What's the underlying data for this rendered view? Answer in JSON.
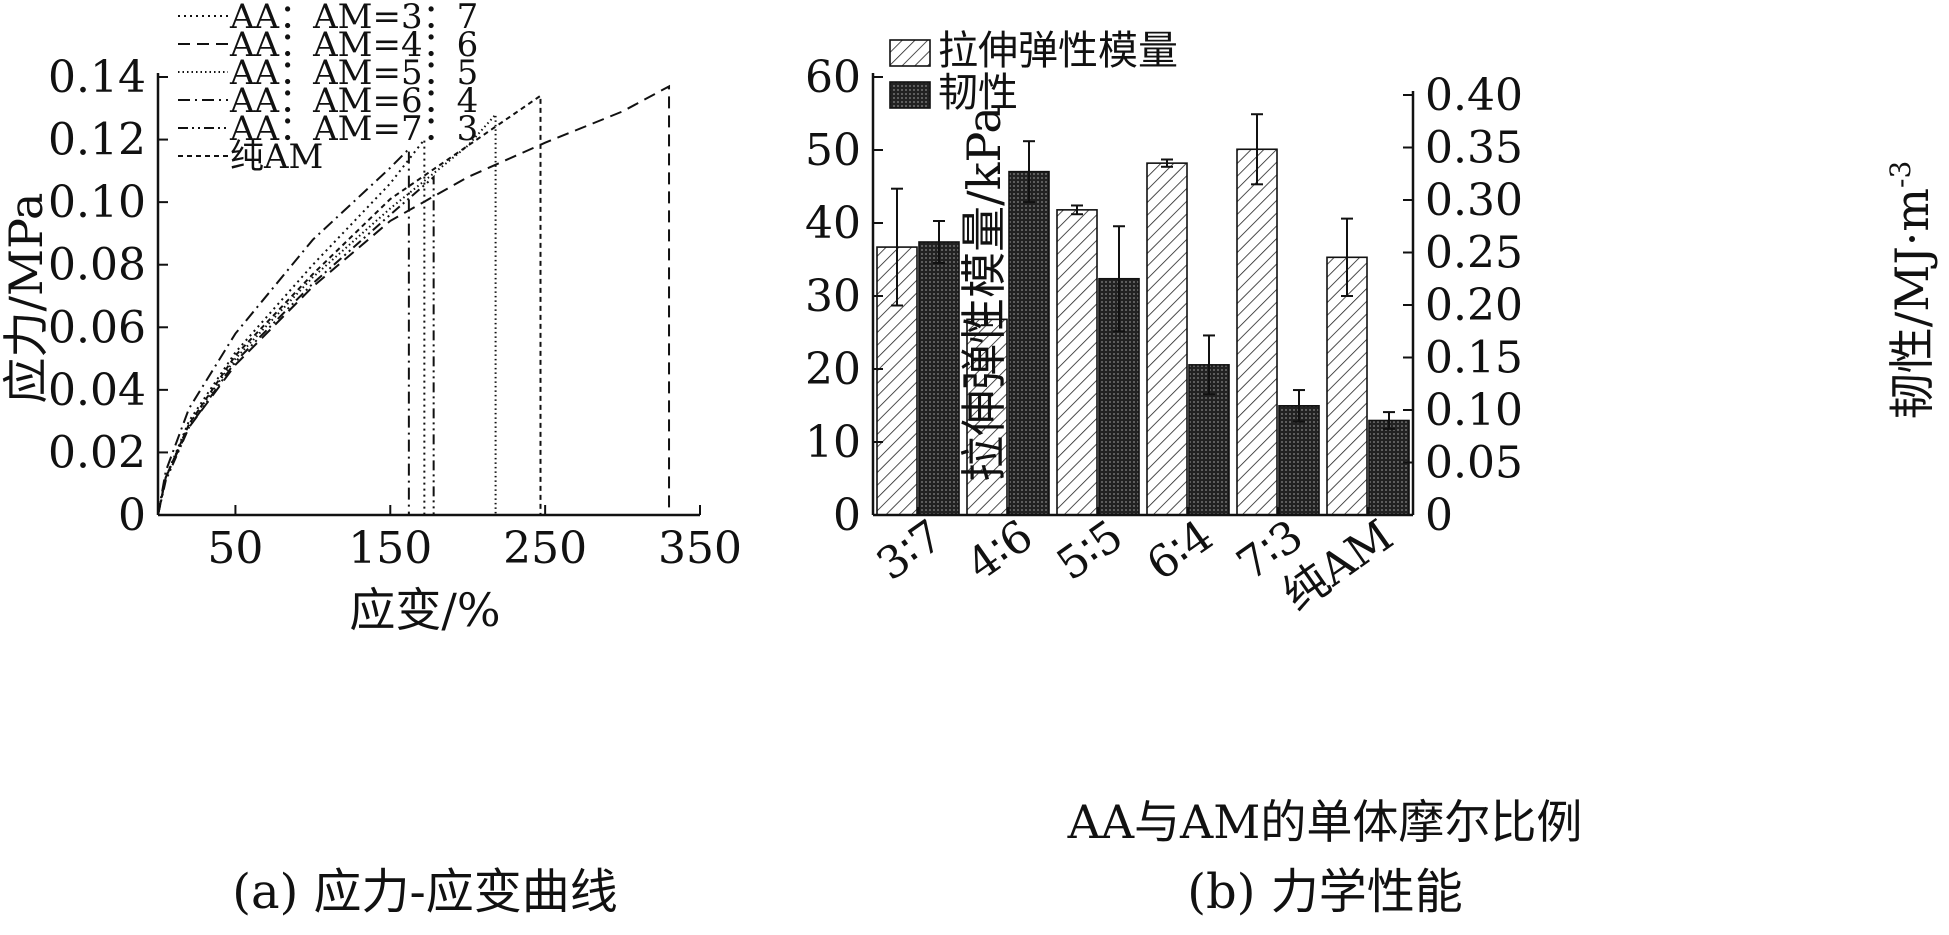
{
  "chart_data": [
    {
      "type": "line",
      "caption": "(a) 应力-应变曲线",
      "xlabel": "应变/%",
      "ylabel": "应力/MPa",
      "xlim": [
        0,
        350
      ],
      "ylim": [
        0,
        0.14
      ],
      "xticks": [
        50,
        150,
        250,
        350
      ],
      "yticks": [
        "0",
        "0.02",
        "0.04",
        "0.06",
        "0.08",
        "0.10",
        "0.12",
        "0.14"
      ],
      "legend_position": "top-left",
      "series": [
        {
          "name": "AA：AM=3：7",
          "dash": "dotted",
          "break_strain": 172,
          "break_stress": 0.12,
          "points": [
            [
              0,
              0
            ],
            [
              5,
              0.012
            ],
            [
              20,
              0.03
            ],
            [
              50,
              0.052
            ],
            [
              100,
              0.08
            ],
            [
              150,
              0.106
            ],
            [
              172,
              0.12
            ]
          ]
        },
        {
          "name": "AA：AM=4：6",
          "dash": "dashed",
          "break_strain": 330,
          "break_stress": 0.137,
          "points": [
            [
              0,
              0
            ],
            [
              5,
              0.012
            ],
            [
              20,
              0.028
            ],
            [
              50,
              0.048
            ],
            [
              100,
              0.073
            ],
            [
              150,
              0.094
            ],
            [
              200,
              0.108
            ],
            [
              250,
              0.119
            ],
            [
              300,
              0.129
            ],
            [
              330,
              0.137
            ]
          ]
        },
        {
          "name": "AA：AM=5：5",
          "dash": "fine-dotted",
          "break_strain": 218,
          "break_stress": 0.128,
          "points": [
            [
              0,
              0
            ],
            [
              5,
              0.012
            ],
            [
              20,
              0.029
            ],
            [
              50,
              0.05
            ],
            [
              100,
              0.076
            ],
            [
              150,
              0.098
            ],
            [
              200,
              0.118
            ],
            [
              218,
              0.128
            ]
          ]
        },
        {
          "name": "AA：AM=6：4",
          "dash": "dash-dot",
          "break_strain": 162,
          "break_stress": 0.117,
          "points": [
            [
              0,
              0
            ],
            [
              5,
              0.014
            ],
            [
              20,
              0.034
            ],
            [
              50,
              0.058
            ],
            [
              100,
              0.088
            ],
            [
              150,
              0.111
            ],
            [
              162,
              0.117
            ]
          ]
        },
        {
          "name": "AA：AM=7：3",
          "dash": "dash-dot-dot",
          "break_strain": 178,
          "break_stress": 0.108,
          "points": [
            [
              0,
              0
            ],
            [
              5,
              0.011
            ],
            [
              20,
              0.028
            ],
            [
              50,
              0.049
            ],
            [
              100,
              0.074
            ],
            [
              150,
              0.096
            ],
            [
              178,
              0.108
            ]
          ]
        },
        {
          "name": "纯AM",
          "dash": "short-dash",
          "break_strain": 247,
          "break_stress": 0.134,
          "points": [
            [
              0,
              0
            ],
            [
              5,
              0.012
            ],
            [
              20,
              0.029
            ],
            [
              50,
              0.051
            ],
            [
              100,
              0.077
            ],
            [
              150,
              0.101
            ],
            [
              200,
              0.118
            ],
            [
              247,
              0.134
            ]
          ]
        }
      ]
    },
    {
      "type": "bar",
      "caption": "(b) 力学性能",
      "xlabel": "AA与AM的单体摩尔比例",
      "ylabel_left": "拉伸弹性模量/kPa",
      "ylabel_right": "韧性/MJ·m",
      "ylabel_right_exponent": "-3",
      "ylim_left": [
        0,
        60
      ],
      "ylim_right": [
        0,
        0.4
      ],
      "yticks_left": [
        "0",
        "10",
        "20",
        "30",
        "40",
        "50",
        "60"
      ],
      "yticks_right": [
        "0",
        "0.05",
        "0.10",
        "0.15",
        "0.20",
        "0.25",
        "0.30",
        "0.35",
        "0.40"
      ],
      "categories": [
        "3∶7",
        "4∶6",
        "5∶5",
        "6∶4",
        "7∶3",
        "纯AM"
      ],
      "legend_position": "top-left",
      "series": [
        {
          "name": "拉伸弹性模量",
          "axis": "left",
          "fill": "hatched",
          "values": [
            36.7,
            26.8,
            41.8,
            48.2,
            50.1,
            35.3
          ],
          "errors": [
            8.0,
            0.8,
            0.6,
            0.5,
            4.8,
            5.3
          ]
        },
        {
          "name": "韧性",
          "axis": "right",
          "fill": "dark-dotted",
          "values": [
            0.26,
            0.327,
            0.225,
            0.143,
            0.104,
            0.09
          ],
          "errors": [
            0.02,
            0.029,
            0.05,
            0.028,
            0.015,
            0.008
          ]
        }
      ]
    }
  ]
}
